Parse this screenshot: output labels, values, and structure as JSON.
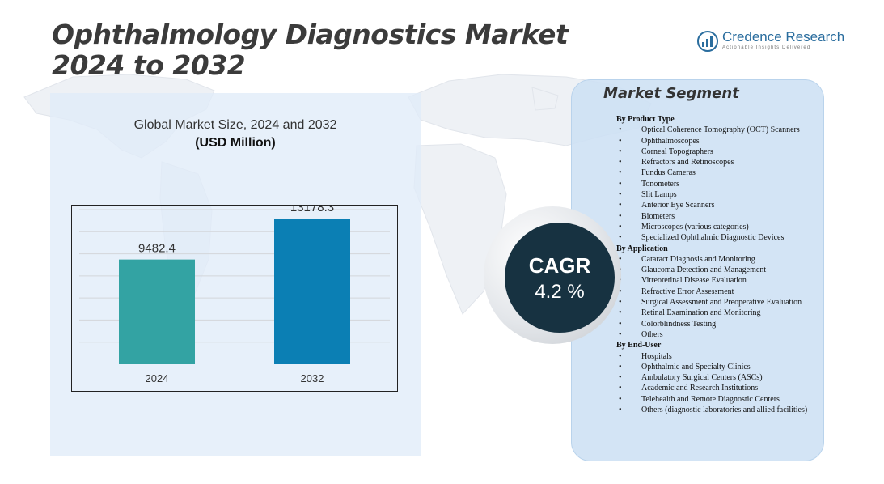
{
  "header": {
    "title_line1": "Ophthalmology Diagnostics Market",
    "title_line2": "2024 to 2032"
  },
  "brand": {
    "name": "Credence Research",
    "tagline": "Actionable Insights Delivered"
  },
  "chart_data": {
    "type": "bar",
    "title": "Global Market Size,  2024 and 2032",
    "unit_label": "(USD Million)",
    "categories": [
      "2024",
      "2032"
    ],
    "values": [
      9482.4,
      13178.3
    ],
    "value_labels": [
      "9482.4",
      "13178.3"
    ],
    "bar_colors": [
      "#33a3a3",
      "#0b7fb4"
    ],
    "ylim": [
      0,
      14000
    ],
    "grid": true,
    "legend": "none"
  },
  "segments": {
    "title": "Market Segment",
    "groups": [
      {
        "heading": "By Product  Type",
        "items": [
          "Optical Coherence Tomography (OCT)  Scanners",
          "Ophthalmoscopes",
          "Corneal Topographers",
          "Refractors and Retinoscopes",
          "Fundus Cameras",
          "Tonometers",
          "Slit Lamps",
          "Anterior Eye Scanners",
          "Biometers",
          "Microscopes (various categories)",
          "Specialized  Ophthalmic Diagnostic Devices"
        ]
      },
      {
        "heading": "By Application",
        "items": [
          "Cataract Diagnosis and Monitoring",
          "Glaucoma  Detection and Management",
          "Vitreoretinal  Disease Evaluation",
          "Refractive Error  Assessment",
          "Surgical  Assessment and Preoperative Evaluation",
          "Retinal Examination  and Monitoring",
          "Colorblindness Testing",
          "Others"
        ]
      },
      {
        "heading": "By End-User",
        "items": [
          "Hospitals",
          "Ophthalmic  and Specialty Clinics",
          "Ambulatory Surgical Centers (ASCs)",
          "Academic  and Research Institutions",
          "Telehealth and Remote  Diagnostic Centers",
          "Others (diagnostic laboratories and allied facilities)"
        ]
      }
    ]
  },
  "cagr": {
    "label": "CAGR",
    "value": "4.2 %"
  },
  "colors": {
    "panel_bg": "#e0ecf9",
    "cagr_bg": "#173241",
    "brand_blue": "#2a6d9e"
  },
  "icons": {
    "background": "world-map-icon",
    "logo": "credence-logo-icon"
  }
}
